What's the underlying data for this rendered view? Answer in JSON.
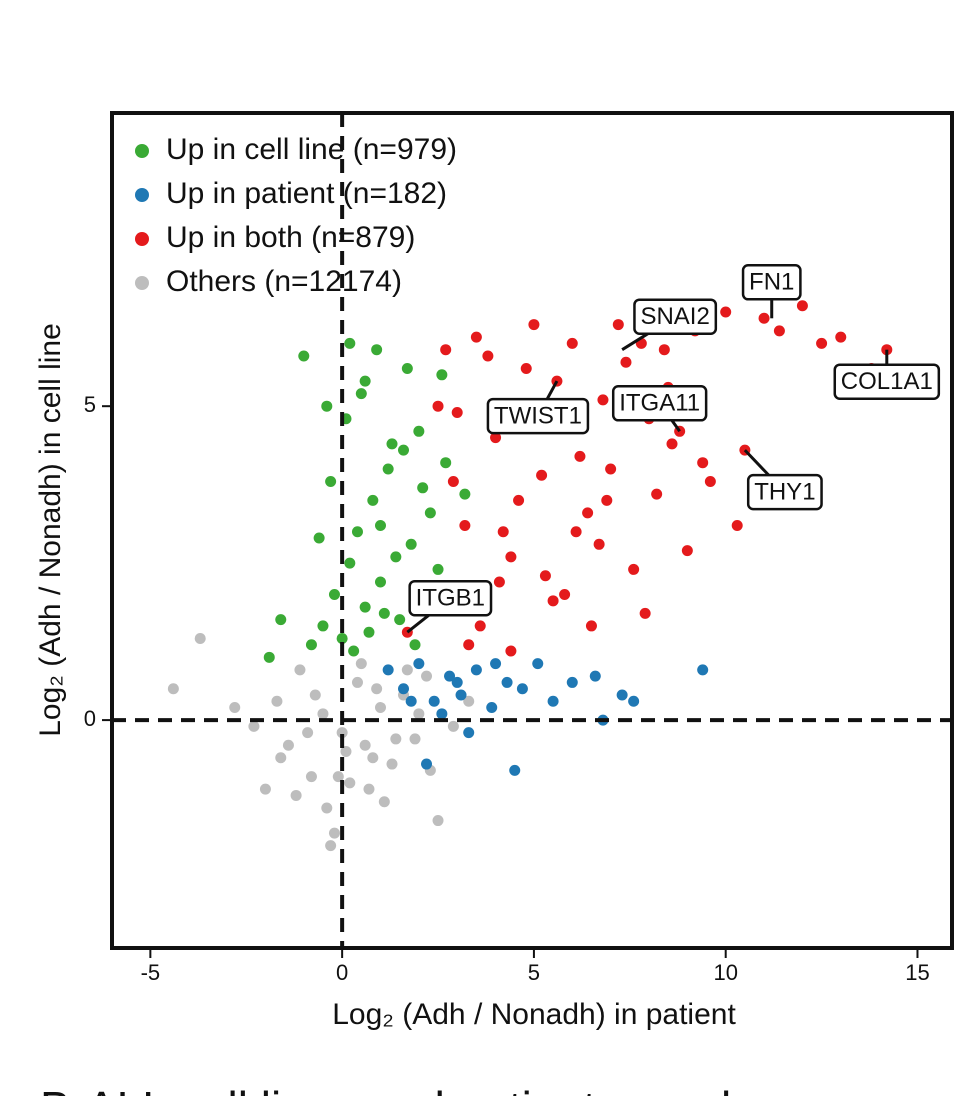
{
  "chart_data": {
    "type": "scatter",
    "xlabel": "Log₂ (Adh / Nonadh) in patient",
    "ylabel": "Log₂ (Adh / Nonadh) in cell line",
    "caption": "B-ALL cell lines and patient samples",
    "xlim": [
      -6,
      15.9
    ],
    "ylim": [
      -3.63,
      9.67
    ],
    "xticks": [
      -5,
      0,
      5,
      10,
      15
    ],
    "yticks": [
      0,
      5
    ],
    "hlines": [
      0
    ],
    "vlines": [
      0
    ],
    "legend": "upper left",
    "series": [
      {
        "name": "Up in cell line (n=979)",
        "color": "#3aaa35",
        "x": [
          -0.8,
          -0.5,
          -0.2,
          0,
          0.2,
          0.4,
          0.6,
          0.8,
          1,
          1.2,
          1.5,
          1.8,
          2,
          2.3,
          2.6,
          -1,
          -0.3,
          0.1,
          0.5,
          0.9,
          1.3,
          1.7,
          2.1,
          2.5,
          2.9,
          -1.6,
          -1.9,
          0.3,
          0.7,
          1.1,
          1.4,
          1.9,
          0.2,
          0.6,
          1.0,
          -0.6,
          2.7,
          3.2,
          -0.4,
          1.6
        ],
        "values": [
          1.2,
          1.5,
          2.0,
          1.3,
          2.5,
          3.0,
          1.8,
          3.5,
          2.2,
          4.0,
          1.6,
          2.8,
          4.6,
          3.3,
          5.5,
          5.8,
          3.8,
          4.8,
          5.2,
          5.9,
          4.4,
          5.6,
          3.7,
          2.4,
          1.9,
          1.6,
          1.0,
          1.1,
          1.4,
          1.7,
          2.6,
          1.2,
          6.0,
          5.4,
          3.1,
          2.9,
          4.1,
          3.6,
          5.0,
          4.3
        ]
      },
      {
        "name": "Up in patient (n=182)",
        "color": "#1f78b4",
        "x": [
          1.2,
          1.6,
          2,
          2.4,
          2.8,
          3.1,
          3.5,
          3.9,
          4.3,
          4.7,
          5.1,
          5.5,
          6,
          6.6,
          7.3,
          7.6,
          9.4,
          2.2,
          3.3,
          4.5,
          1.8,
          2.6,
          6.8,
          4,
          3.0
        ],
        "values": [
          0.8,
          0.5,
          0.9,
          0.3,
          0.7,
          0.4,
          0.8,
          0.2,
          0.6,
          0.5,
          0.9,
          0.3,
          0.6,
          0.7,
          0.4,
          0.3,
          0.8,
          -0.7,
          -0.2,
          -0.8,
          0.3,
          0.1,
          0.0,
          0.9,
          0.6
        ]
      },
      {
        "name": "Up in both (n=879)",
        "color": "#e41a1c",
        "x": [
          1.7,
          2.2,
          2.7,
          3.2,
          3.6,
          4.0,
          4.4,
          4.8,
          5.2,
          5.6,
          6.0,
          6.4,
          6.8,
          7.2,
          7.6,
          8.0,
          8.4,
          8.8,
          9.2,
          9.6,
          10.0,
          10.5,
          11.0,
          11.4,
          12.0,
          12.5,
          13.0,
          13.8,
          14.2,
          3.0,
          3.5,
          4.1,
          4.6,
          5.0,
          5.5,
          6.2,
          6.7,
          7.4,
          7.9,
          8.5,
          9.0,
          4.2,
          5.3,
          6.5,
          7.0,
          8.2,
          9.4,
          10.3,
          2.5,
          3.8,
          5.8,
          7.8,
          3.3,
          4.9,
          6.1,
          2.9,
          4.4,
          5.7,
          6.9,
          8.6
        ],
        "values": [
          1.4,
          2.0,
          5.9,
          3.1,
          1.5,
          4.5,
          2.6,
          5.6,
          3.9,
          5.4,
          6.0,
          3.3,
          5.1,
          6.3,
          2.4,
          4.8,
          5.9,
          4.6,
          6.2,
          3.8,
          6.5,
          4.3,
          6.4,
          6.2,
          6.6,
          6.0,
          6.1,
          5.6,
          5.9,
          4.9,
          6.1,
          2.2,
          3.5,
          6.3,
          1.9,
          4.2,
          2.8,
          5.7,
          1.7,
          5.3,
          2.7,
          3.0,
          2.3,
          1.5,
          4.0,
          3.6,
          4.1,
          3.1,
          5.0,
          5.8,
          2.0,
          6.0,
          1.2,
          4.7,
          3.0,
          3.8,
          1.1,
          5.0,
          3.5,
          4.4
        ]
      },
      {
        "name": "Others (n=12174)",
        "color": "#bdbdbd",
        "x": [
          -4.4,
          -3.7,
          -2.8,
          -2.3,
          -2,
          -1.7,
          -1.4,
          -1.1,
          -0.8,
          -0.5,
          -0.2,
          0.1,
          0.4,
          0.7,
          1,
          1.3,
          1.6,
          1.9,
          2.2,
          2.5,
          2.9,
          3.3,
          -0.9,
          -0.4,
          0.2,
          0.8,
          1.4,
          2.0,
          -1.6,
          -0.1,
          0.5,
          1.1,
          -0.7,
          0,
          0.9,
          2.3,
          -1.2,
          -0.3,
          0.6,
          1.7
        ],
        "values": [
          0.5,
          1.3,
          0.2,
          -0.1,
          -1.1,
          0.3,
          -0.4,
          0.8,
          -0.9,
          0.1,
          -1.8,
          -0.5,
          0.6,
          -1.1,
          0.2,
          -0.7,
          0.4,
          -0.3,
          0.7,
          -1.6,
          -0.1,
          0.3,
          -0.2,
          -1.4,
          -1.0,
          -0.6,
          -0.3,
          0.1,
          -0.6,
          -0.9,
          0.9,
          -1.3,
          0.4,
          -0.2,
          0.5,
          -0.8,
          -1.2,
          -2.0,
          -0.4,
          0.8
        ]
      }
    ],
    "annotations": [
      {
        "text": "FN1",
        "x": 11.2,
        "y": 6.4
      },
      {
        "text": "SNAI2",
        "x": 7.3,
        "y": 5.9
      },
      {
        "text": "TWIST1",
        "x": 5.6,
        "y": 5.4
      },
      {
        "text": "ITGA11",
        "x": 8.8,
        "y": 4.6
      },
      {
        "text": "COL1A1",
        "x": 14.2,
        "y": 5.9
      },
      {
        "text": "THY1",
        "x": 10.5,
        "y": 4.3
      },
      {
        "text": "ITGB1",
        "x": 1.7,
        "y": 1.4
      }
    ]
  }
}
